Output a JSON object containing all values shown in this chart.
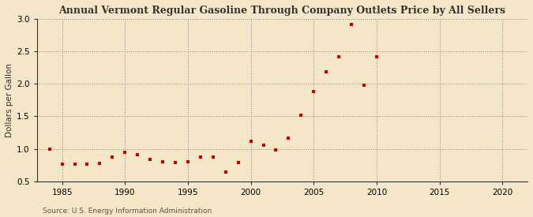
{
  "title": "Annual Vermont Regular Gasoline Through Company Outlets Price by All Sellers",
  "ylabel": "Dollars per Gallon",
  "source": "Source: U.S. Energy Information Administration",
  "background_color": "#f5e6c8",
  "marker_color": "#cc0000",
  "xlim": [
    1983,
    2022
  ],
  "ylim": [
    0.5,
    3.0
  ],
  "xticks": [
    1985,
    1990,
    1995,
    2000,
    2005,
    2010,
    2015,
    2020
  ],
  "yticks": [
    0.5,
    1.0,
    1.5,
    2.0,
    2.5,
    3.0
  ],
  "years": [
    1984,
    1985,
    1986,
    1987,
    1988,
    1989,
    1990,
    1991,
    1992,
    1993,
    1994,
    1995,
    1996,
    1997,
    1998,
    1999,
    2000,
    2001,
    2002,
    2003,
    2004,
    2005,
    2006,
    2007,
    2008,
    2009,
    2010
  ],
  "values": [
    1.0,
    0.76,
    0.76,
    0.76,
    0.78,
    0.87,
    0.95,
    0.91,
    0.84,
    0.8,
    0.79,
    0.8,
    0.87,
    0.87,
    0.64,
    0.79,
    1.12,
    1.05,
    0.98,
    1.17,
    1.52,
    1.88,
    2.18,
    2.41,
    2.91,
    1.98,
    2.42
  ]
}
